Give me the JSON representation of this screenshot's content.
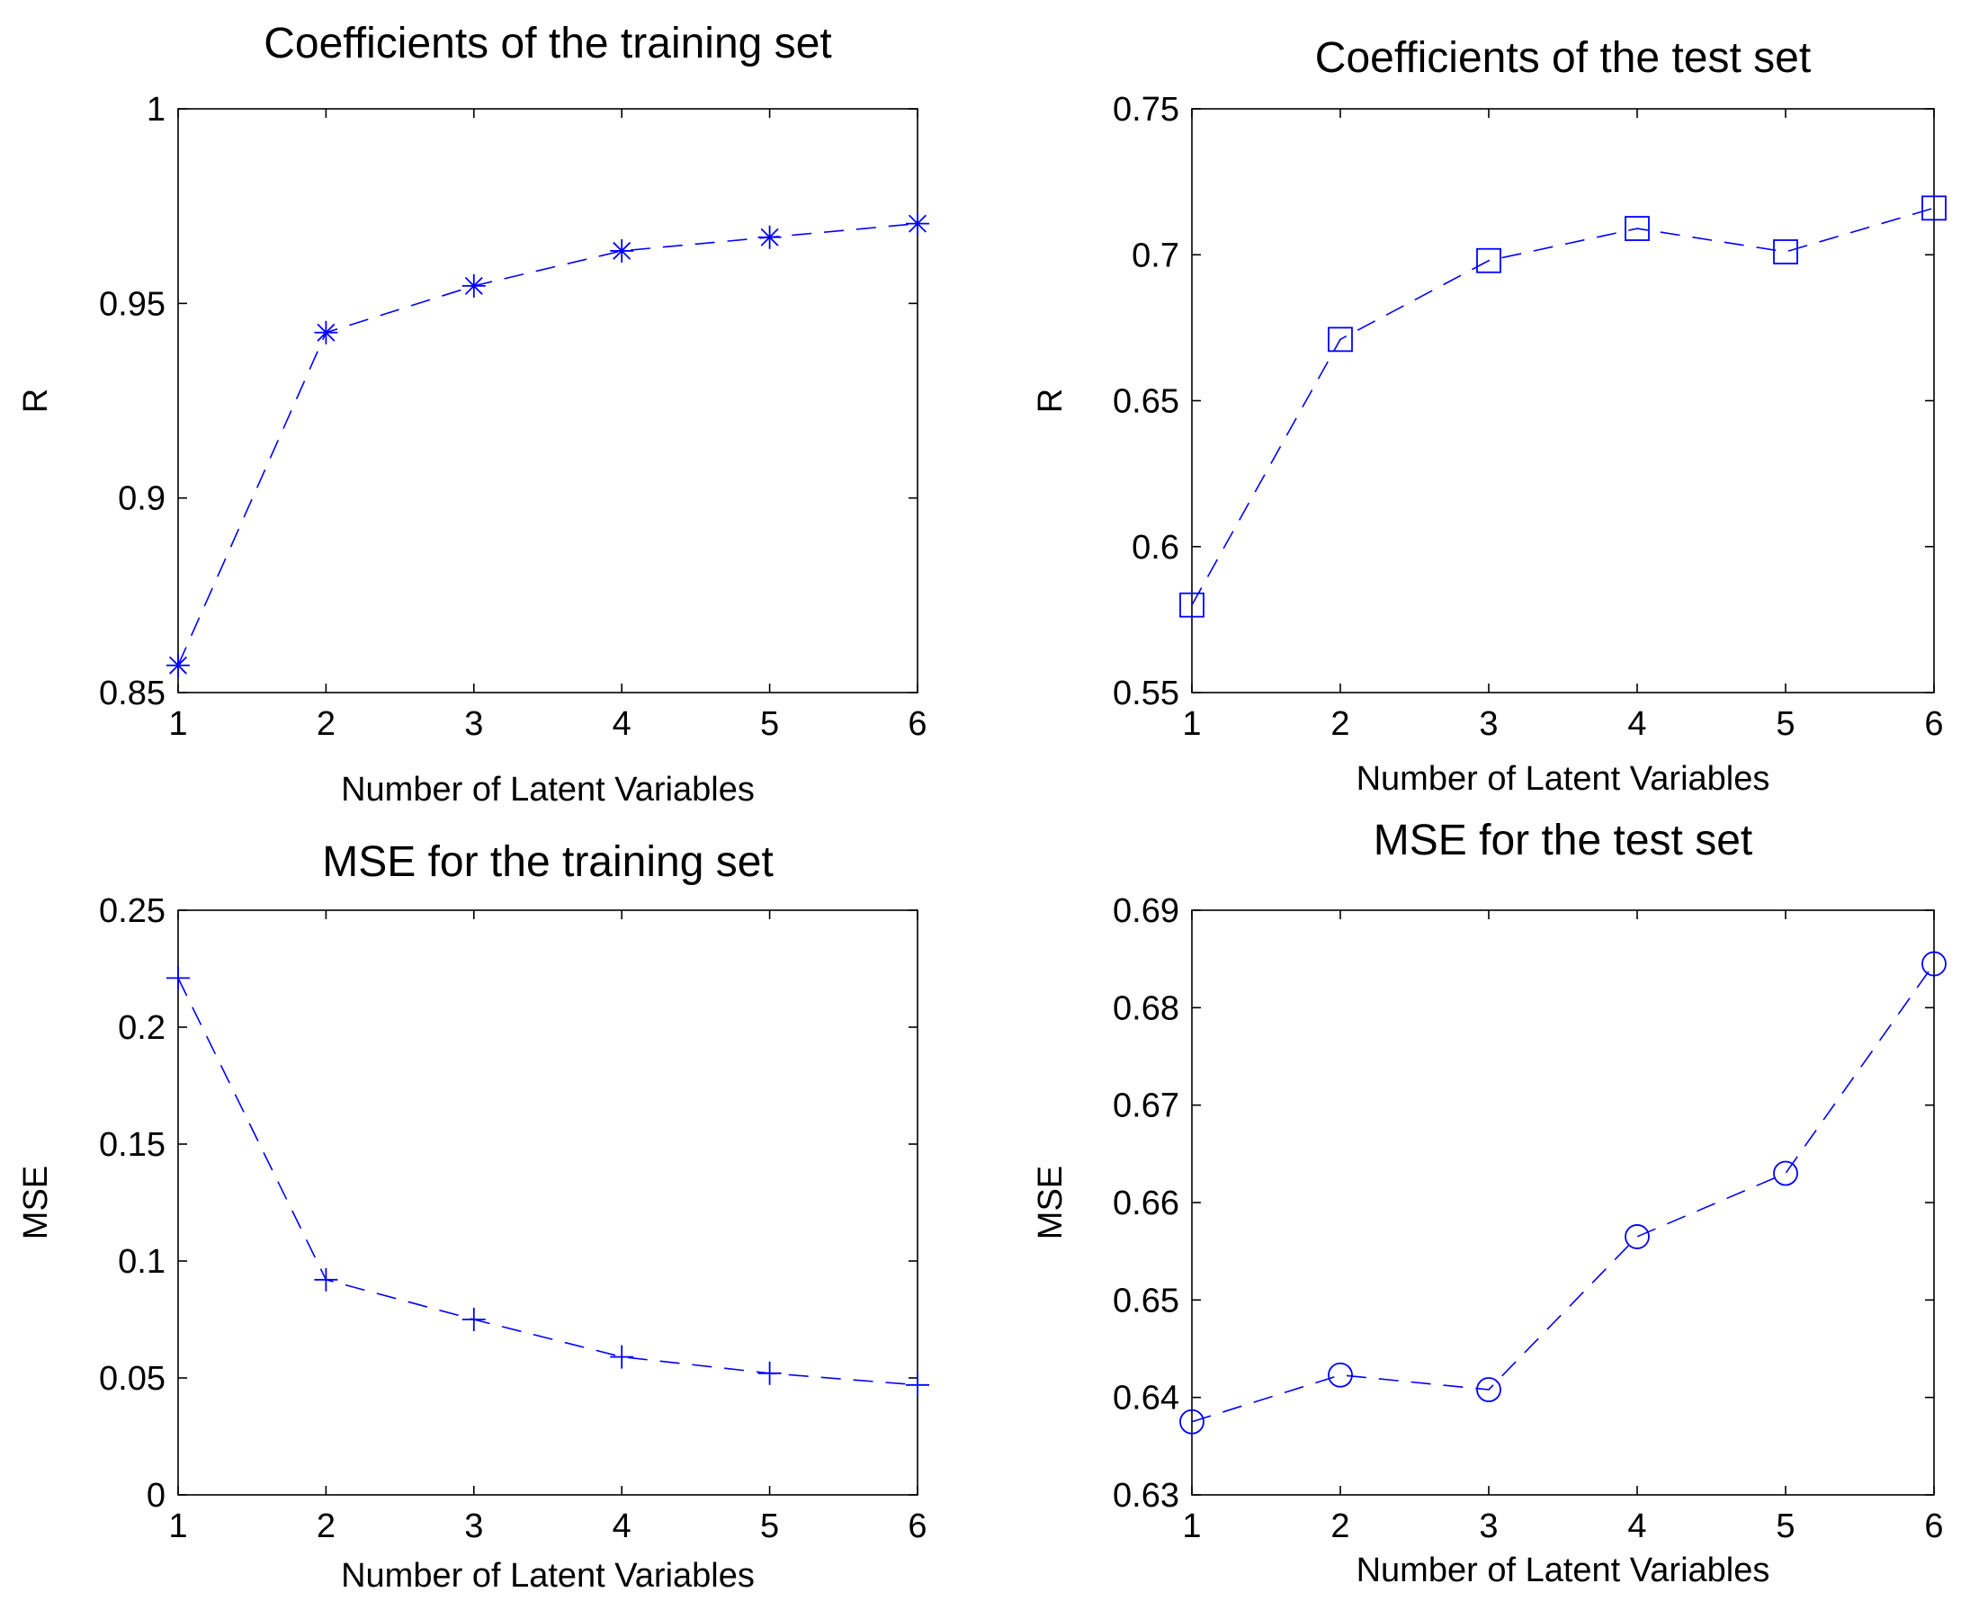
{
  "figure": {
    "series_color": "#0000ff"
  },
  "chart_data": [
    {
      "type": "line",
      "title": "Coefficients of the training set",
      "xlabel": "Number of Latent Variables",
      "ylabel": "R",
      "x": [
        1,
        2,
        3,
        4,
        5,
        6
      ],
      "xlim": [
        1,
        6
      ],
      "ylim": [
        0.85,
        1
      ],
      "xticks": [
        1,
        2,
        3,
        4,
        5,
        6
      ],
      "xtick_labels": [
        "1",
        "2",
        "3",
        "4",
        "5",
        "6"
      ],
      "yticks": [
        0.85,
        0.9,
        0.95,
        1
      ],
      "ytick_labels": [
        "0.85",
        "0.9",
        "0.95",
        "1"
      ],
      "marker": "asterisk",
      "line_style": "dashed",
      "grid": false,
      "series": [
        {
          "name": "R",
          "values": [
            0.857,
            0.9425,
            0.9545,
            0.9635,
            0.967,
            0.9705
          ]
        }
      ]
    },
    {
      "type": "line",
      "title": "Coefficients of the test set",
      "xlabel": "Number of Latent Variables",
      "ylabel": "R",
      "x": [
        1,
        2,
        3,
        4,
        5,
        6
      ],
      "xlim": [
        1,
        6
      ],
      "ylim": [
        0.55,
        0.75
      ],
      "xticks": [
        1,
        2,
        3,
        4,
        5,
        6
      ],
      "xtick_labels": [
        "1",
        "2",
        "3",
        "4",
        "5",
        "6"
      ],
      "yticks": [
        0.55,
        0.6,
        0.65,
        0.7,
        0.75
      ],
      "ytick_labels": [
        "0.55",
        "0.6",
        "0.65",
        "0.7",
        "0.75"
      ],
      "marker": "square",
      "line_style": "dashed",
      "grid": false,
      "series": [
        {
          "name": "R",
          "values": [
            0.58,
            0.671,
            0.698,
            0.709,
            0.701,
            0.716
          ]
        }
      ]
    },
    {
      "type": "line",
      "title": "MSE for the training set",
      "xlabel": "Number of Latent Variables",
      "ylabel": "MSE",
      "x": [
        1,
        2,
        3,
        4,
        5,
        6
      ],
      "xlim": [
        1,
        6
      ],
      "ylim": [
        0,
        0.25
      ],
      "xticks": [
        1,
        2,
        3,
        4,
        5,
        6
      ],
      "xtick_labels": [
        "1",
        "2",
        "3",
        "4",
        "5",
        "6"
      ],
      "yticks": [
        0,
        0.05,
        0.1,
        0.15,
        0.2,
        0.25
      ],
      "ytick_labels": [
        "0",
        "0.05",
        "0.1",
        "0.15",
        "0.2",
        "0.25"
      ],
      "marker": "plus",
      "line_style": "dashed",
      "grid": false,
      "series": [
        {
          "name": "MSE",
          "values": [
            0.221,
            0.092,
            0.075,
            0.059,
            0.052,
            0.047
          ]
        }
      ]
    },
    {
      "type": "line",
      "title": "MSE for the test set",
      "xlabel": "Number of Latent Variables",
      "ylabel": "MSE",
      "x": [
        1,
        2,
        3,
        4,
        5,
        6
      ],
      "xlim": [
        1,
        6
      ],
      "ylim": [
        0.63,
        0.69
      ],
      "xticks": [
        1,
        2,
        3,
        4,
        5,
        6
      ],
      "xtick_labels": [
        "1",
        "2",
        "3",
        "4",
        "5",
        "6"
      ],
      "yticks": [
        0.63,
        0.64,
        0.65,
        0.66,
        0.67,
        0.68,
        0.69
      ],
      "ytick_labels": [
        "0.63",
        "0.64",
        "0.65",
        "0.66",
        "0.67",
        "0.68",
        "0.69"
      ],
      "marker": "circle",
      "line_style": "dashed",
      "grid": false,
      "series": [
        {
          "name": "MSE",
          "values": [
            0.6375,
            0.6423,
            0.6408,
            0.6565,
            0.663,
            0.6845
          ]
        }
      ]
    }
  ]
}
